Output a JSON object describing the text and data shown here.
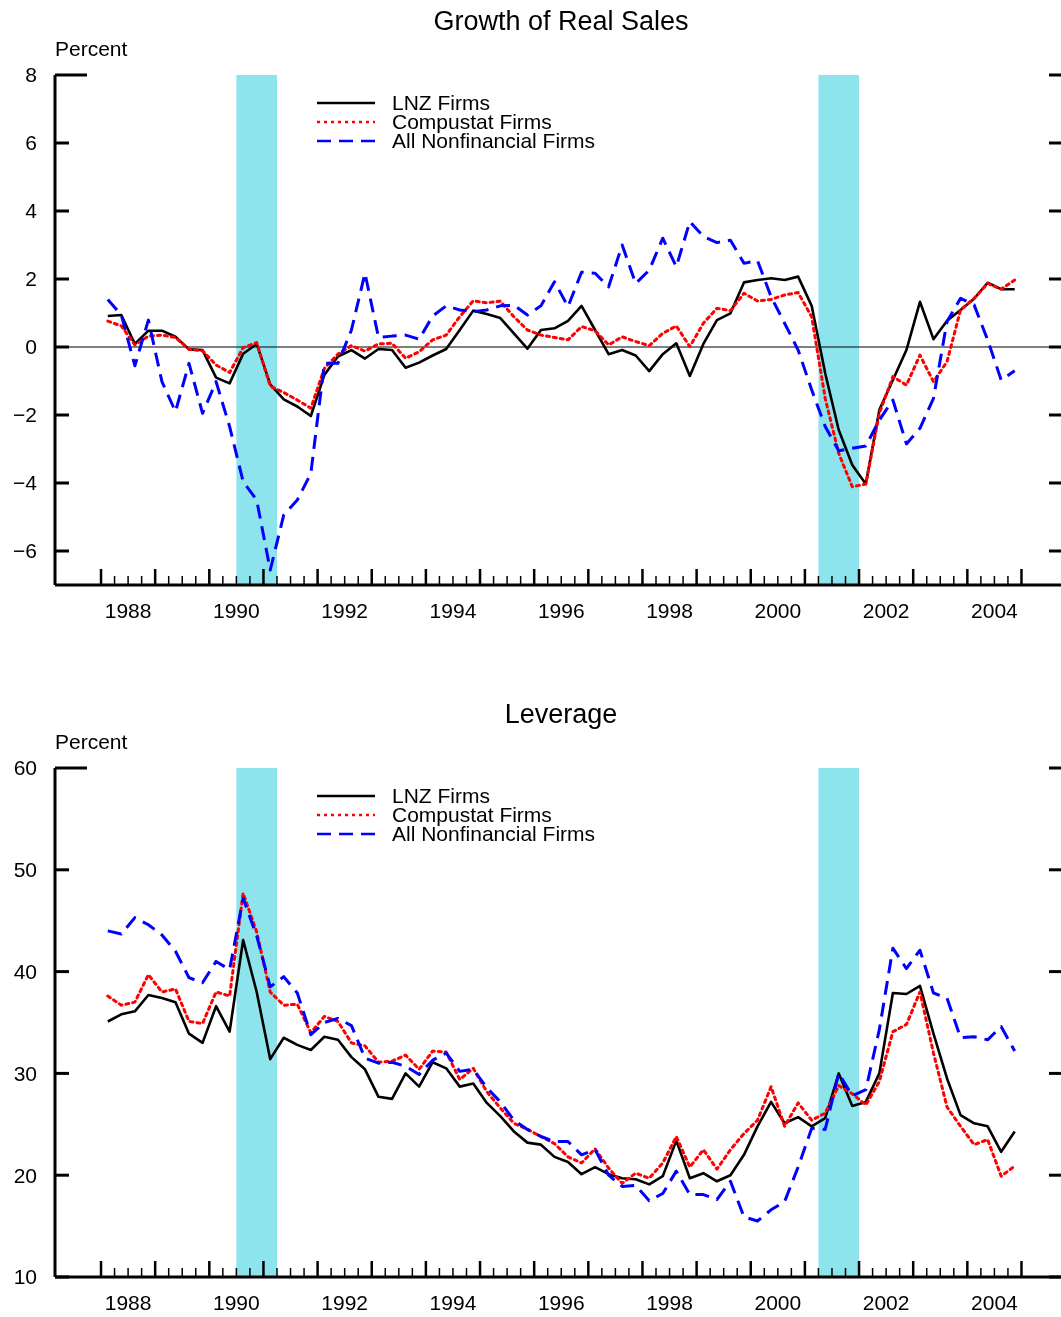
{
  "chart_data": [
    {
      "type": "line",
      "title": "Growth of Real Sales",
      "ylabel": "Percent",
      "xlim": [
        1987.15,
        2005.73
      ],
      "ylim": [
        -7,
        8
      ],
      "yticks": [
        -6,
        -4,
        -2,
        0,
        2,
        4,
        6,
        8
      ],
      "xticks": [
        {
          "value": 1988,
          "label": null
        },
        {
          "value": 1988.25,
          "label": null
        },
        {
          "value": 1988.5,
          "label": "1988"
        },
        {
          "value": 1988.75,
          "label": null
        },
        {
          "value": 1989,
          "label": null
        },
        {
          "value": 1989.25,
          "label": null
        },
        {
          "value": 1989.5,
          "label": null
        },
        {
          "value": 1989.75,
          "label": null
        },
        {
          "value": 1990,
          "label": null
        },
        {
          "value": 1990.25,
          "label": null
        },
        {
          "value": 1990.5,
          "label": "1990"
        },
        {
          "value": 1990.75,
          "label": null
        },
        {
          "value": 1991,
          "label": null
        },
        {
          "value": 1991.25,
          "label": null
        },
        {
          "value": 1991.5,
          "label": null
        },
        {
          "value": 1991.75,
          "label": null
        },
        {
          "value": 1992,
          "label": null
        },
        {
          "value": 1992.25,
          "label": null
        },
        {
          "value": 1992.5,
          "label": "1992"
        },
        {
          "value": 1992.75,
          "label": null
        },
        {
          "value": 1993,
          "label": null
        },
        {
          "value": 1993.25,
          "label": null
        },
        {
          "value": 1993.5,
          "label": null
        },
        {
          "value": 1993.75,
          "label": null
        },
        {
          "value": 1994,
          "label": null
        },
        {
          "value": 1994.25,
          "label": null
        },
        {
          "value": 1994.5,
          "label": "1994"
        },
        {
          "value": 1994.75,
          "label": null
        },
        {
          "value": 1995,
          "label": null
        },
        {
          "value": 1995.25,
          "label": null
        },
        {
          "value": 1995.5,
          "label": null
        },
        {
          "value": 1995.75,
          "label": null
        },
        {
          "value": 1996,
          "label": null
        },
        {
          "value": 1996.25,
          "label": null
        },
        {
          "value": 1996.5,
          "label": "1996"
        },
        {
          "value": 1996.75,
          "label": null
        },
        {
          "value": 1997,
          "label": null
        },
        {
          "value": 1997.25,
          "label": null
        },
        {
          "value": 1997.5,
          "label": null
        },
        {
          "value": 1997.75,
          "label": null
        },
        {
          "value": 1998,
          "label": null
        },
        {
          "value": 1998.25,
          "label": null
        },
        {
          "value": 1998.5,
          "label": "1998"
        },
        {
          "value": 1998.75,
          "label": null
        },
        {
          "value": 1999,
          "label": null
        },
        {
          "value": 1999.25,
          "label": null
        },
        {
          "value": 1999.5,
          "label": null
        },
        {
          "value": 1999.75,
          "label": null
        },
        {
          "value": 2000,
          "label": null
        },
        {
          "value": 2000.25,
          "label": null
        },
        {
          "value": 2000.5,
          "label": "2000"
        },
        {
          "value": 2000.75,
          "label": null
        },
        {
          "value": 2001,
          "label": null
        },
        {
          "value": 2001.25,
          "label": null
        },
        {
          "value": 2001.5,
          "label": null
        },
        {
          "value": 2001.75,
          "label": null
        },
        {
          "value": 2002,
          "label": null
        },
        {
          "value": 2002.25,
          "label": null
        },
        {
          "value": 2002.5,
          "label": "2002"
        },
        {
          "value": 2002.75,
          "label": null
        },
        {
          "value": 2003,
          "label": null
        },
        {
          "value": 2003.25,
          "label": null
        },
        {
          "value": 2003.5,
          "label": null
        },
        {
          "value": 2003.75,
          "label": null
        },
        {
          "value": 2004,
          "label": null
        },
        {
          "value": 2004.25,
          "label": null
        },
        {
          "value": 2004.5,
          "label": "2004"
        },
        {
          "value": 2004.75,
          "label": null
        },
        {
          "value": 2005,
          "label": null
        }
      ],
      "legend": "top left",
      "grid": false,
      "bands": [
        {
          "axis": "x",
          "from": 1990.5,
          "to": 1991.25,
          "color": "#8ee4ec"
        },
        {
          "axis": "x",
          "from": 2001.25,
          "to": 2002,
          "color": "#8ee4ec"
        }
      ],
      "ref_lines": [
        {
          "axis": "y",
          "value": 0,
          "color": "#000000"
        }
      ],
      "x": [
        1988.125,
        1988.375,
        1988.625,
        1988.875,
        1989.125,
        1989.375,
        1989.625,
        1989.875,
        1990.125,
        1990.375,
        1990.625,
        1990.875,
        1991.125,
        1991.375,
        1991.625,
        1991.875,
        1992.125,
        1992.375,
        1992.625,
        1992.875,
        1993.125,
        1993.375,
        1993.625,
        1993.875,
        1994.125,
        1994.375,
        1994.625,
        1994.875,
        1995.125,
        1995.375,
        1995.625,
        1995.875,
        1996.125,
        1996.375,
        1996.625,
        1996.875,
        1997.125,
        1997.375,
        1997.625,
        1997.875,
        1998.125,
        1998.375,
        1998.625,
        1998.875,
        1999.125,
        1999.375,
        1999.625,
        1999.875,
        2000.125,
        2000.375,
        2000.625,
        2000.875,
        2001.125,
        2001.375,
        2001.625,
        2001.875,
        2002.125,
        2002.375,
        2002.625,
        2002.875,
        2003.125,
        2003.375,
        2003.625,
        2003.875,
        2004.125,
        2004.375,
        2004.625,
        2004.875
      ],
      "series": [
        {
          "name": "LNZ Firms",
          "color": "#000000",
          "line_style": "solid",
          "values": [
            0.91,
            0.94,
            0.09,
            0.48,
            0.48,
            0.3,
            -0.07,
            -0.09,
            -0.9,
            -1.07,
            -0.2,
            0.09,
            -1.1,
            -1.54,
            -1.75,
            -2.03,
            -0.82,
            -0.28,
            -0.09,
            -0.34,
            -0.06,
            -0.09,
            -0.61,
            -0.46,
            -0.25,
            -0.06,
            0.5,
            1.07,
            0.97,
            0.85,
            0.4,
            -0.05,
            0.5,
            0.55,
            0.77,
            1.21,
            0.5,
            -0.21,
            -0.09,
            -0.25,
            -0.71,
            -0.21,
            0.11,
            -0.85,
            0.09,
            0.79,
            0.99,
            1.9,
            1.97,
            2.02,
            1.97,
            2.07,
            1.21,
            -0.77,
            -2.44,
            -3.47,
            -4.03,
            -1.85,
            -0.97,
            -0.09,
            1.33,
            0.23,
            0.77,
            1.09,
            1.42,
            1.89,
            1.7,
            1.7
          ]
        },
        {
          "name": "Compustat Firms",
          "color": "#ff0000",
          "line_style": "dotted",
          "values": [
            0.76,
            0.62,
            0.06,
            0.32,
            0.35,
            0.28,
            -0.07,
            -0.11,
            -0.53,
            -0.75,
            -0.02,
            0.13,
            -1.15,
            -1.34,
            -1.56,
            -1.8,
            -0.63,
            -0.21,
            0.04,
            -0.12,
            0.09,
            0.11,
            -0.33,
            -0.14,
            0.21,
            0.35,
            0.89,
            1.36,
            1.3,
            1.35,
            0.89,
            0.5,
            0.35,
            0.28,
            0.21,
            0.6,
            0.48,
            0.06,
            0.3,
            0.16,
            0.04,
            0.4,
            0.62,
            0.01,
            0.7,
            1.14,
            1.07,
            1.58,
            1.35,
            1.4,
            1.53,
            1.6,
            0.89,
            -1.51,
            -3.13,
            -4.11,
            -4.03,
            -1.95,
            -0.87,
            -1.12,
            -0.24,
            -1.02,
            -0.43,
            1.09,
            1.43,
            1.87,
            1.7,
            1.97
          ]
        },
        {
          "name": "All Nonfinancial Firms",
          "color": "#0000ff",
          "line_style": "dashed",
          "values": [
            1.4,
            0.94,
            -0.55,
            0.79,
            -1.02,
            -1.9,
            -0.48,
            -1.95,
            -1.02,
            -2.34,
            -3.96,
            -4.5,
            -6.56,
            -4.94,
            -4.5,
            -3.72,
            -0.48,
            -0.48,
            0.5,
            2.17,
            0.28,
            0.32,
            0.35,
            0.23,
            0.91,
            1.21,
            1.09,
            1.04,
            1.09,
            1.21,
            1.23,
            0.94,
            1.21,
            1.92,
            1.19,
            2.2,
            2.17,
            1.77,
            3.0,
            1.87,
            2.26,
            3.2,
            2.36,
            3.69,
            3.25,
            3.07,
            3.14,
            2.46,
            2.54,
            1.48,
            0.7,
            -0.09,
            -1.26,
            -2.34,
            -3.05,
            -2.98,
            -2.91,
            -2.15,
            -1.56,
            -2.85,
            -2.39,
            -1.51,
            0.75,
            1.43,
            1.24,
            0.21,
            -0.97,
            -0.7
          ]
        }
      ]
    },
    {
      "type": "line",
      "title": "Leverage",
      "ylabel": "Percent",
      "xlim": [
        1987.15,
        2005.73
      ],
      "ylim": [
        10,
        60
      ],
      "yticks": [
        10,
        20,
        30,
        40,
        50,
        60
      ],
      "xticks": [
        {
          "value": 1988,
          "label": null
        },
        {
          "value": 1988.25,
          "label": null
        },
        {
          "value": 1988.5,
          "label": "1988"
        },
        {
          "value": 1988.75,
          "label": null
        },
        {
          "value": 1989,
          "label": null
        },
        {
          "value": 1989.25,
          "label": null
        },
        {
          "value": 1989.5,
          "label": null
        },
        {
          "value": 1989.75,
          "label": null
        },
        {
          "value": 1990,
          "label": null
        },
        {
          "value": 1990.25,
          "label": null
        },
        {
          "value": 1990.5,
          "label": "1990"
        },
        {
          "value": 1990.75,
          "label": null
        },
        {
          "value": 1991,
          "label": null
        },
        {
          "value": 1991.25,
          "label": null
        },
        {
          "value": 1991.5,
          "label": null
        },
        {
          "value": 1991.75,
          "label": null
        },
        {
          "value": 1992,
          "label": null
        },
        {
          "value": 1992.25,
          "label": null
        },
        {
          "value": 1992.5,
          "label": "1992"
        },
        {
          "value": 1992.75,
          "label": null
        },
        {
          "value": 1993,
          "label": null
        },
        {
          "value": 1993.25,
          "label": null
        },
        {
          "value": 1993.5,
          "label": null
        },
        {
          "value": 1993.75,
          "label": null
        },
        {
          "value": 1994,
          "label": null
        },
        {
          "value": 1994.25,
          "label": null
        },
        {
          "value": 1994.5,
          "label": "1994"
        },
        {
          "value": 1994.75,
          "label": null
        },
        {
          "value": 1995,
          "label": null
        },
        {
          "value": 1995.25,
          "label": null
        },
        {
          "value": 1995.5,
          "label": null
        },
        {
          "value": 1995.75,
          "label": null
        },
        {
          "value": 1996,
          "label": null
        },
        {
          "value": 1996.25,
          "label": null
        },
        {
          "value": 1996.5,
          "label": "1996"
        },
        {
          "value": 1996.75,
          "label": null
        },
        {
          "value": 1997,
          "label": null
        },
        {
          "value": 1997.25,
          "label": null
        },
        {
          "value": 1997.5,
          "label": null
        },
        {
          "value": 1997.75,
          "label": null
        },
        {
          "value": 1998,
          "label": null
        },
        {
          "value": 1998.25,
          "label": null
        },
        {
          "value": 1998.5,
          "label": "1998"
        },
        {
          "value": 1998.75,
          "label": null
        },
        {
          "value": 1999,
          "label": null
        },
        {
          "value": 1999.25,
          "label": null
        },
        {
          "value": 1999.5,
          "label": null
        },
        {
          "value": 1999.75,
          "label": null
        },
        {
          "value": 2000,
          "label": null
        },
        {
          "value": 2000.25,
          "label": null
        },
        {
          "value": 2000.5,
          "label": "2000"
        },
        {
          "value": 2000.75,
          "label": null
        },
        {
          "value": 2001,
          "label": null
        },
        {
          "value": 2001.25,
          "label": null
        },
        {
          "value": 2001.5,
          "label": null
        },
        {
          "value": 2001.75,
          "label": null
        },
        {
          "value": 2002,
          "label": null
        },
        {
          "value": 2002.25,
          "label": null
        },
        {
          "value": 2002.5,
          "label": "2002"
        },
        {
          "value": 2002.75,
          "label": null
        },
        {
          "value": 2003,
          "label": null
        },
        {
          "value": 2003.25,
          "label": null
        },
        {
          "value": 2003.5,
          "label": null
        },
        {
          "value": 2003.75,
          "label": null
        },
        {
          "value": 2004,
          "label": null
        },
        {
          "value": 2004.25,
          "label": null
        },
        {
          "value": 2004.5,
          "label": "2004"
        },
        {
          "value": 2004.75,
          "label": null
        },
        {
          "value": 2005,
          "label": null
        }
      ],
      "legend": "top left",
      "grid": false,
      "bands": [
        {
          "axis": "x",
          "from": 1990.5,
          "to": 1991.25,
          "color": "#8ee4ec"
        },
        {
          "axis": "x",
          "from": 2001.25,
          "to": 2002,
          "color": "#8ee4ec"
        }
      ],
      "x": [
        1988.125,
        1988.375,
        1988.625,
        1988.875,
        1989.125,
        1989.375,
        1989.625,
        1989.875,
        1990.125,
        1990.375,
        1990.625,
        1990.875,
        1991.125,
        1991.375,
        1991.625,
        1991.875,
        1992.125,
        1992.375,
        1992.625,
        1992.875,
        1993.125,
        1993.375,
        1993.625,
        1993.875,
        1994.125,
        1994.375,
        1994.625,
        1994.875,
        1995.125,
        1995.375,
        1995.625,
        1995.875,
        1996.125,
        1996.375,
        1996.625,
        1996.875,
        1997.125,
        1997.375,
        1997.625,
        1997.875,
        1998.125,
        1998.375,
        1998.625,
        1998.875,
        1999.125,
        1999.375,
        1999.625,
        1999.875,
        2000.125,
        2000.375,
        2000.625,
        2000.875,
        2001.125,
        2001.375,
        2001.625,
        2001.875,
        2002.125,
        2002.375,
        2002.625,
        2002.875,
        2003.125,
        2003.375,
        2003.625,
        2003.875,
        2004.125,
        2004.375,
        2004.625,
        2004.875
      ],
      "series": [
        {
          "name": "LNZ Firms",
          "color": "#000000",
          "line_style": "solid",
          "values": [
            35.1,
            35.8,
            36.1,
            37.7,
            37.4,
            37.0,
            33.9,
            33.0,
            36.6,
            34.1,
            43.1,
            38.0,
            31.4,
            33.5,
            32.8,
            32.3,
            33.6,
            33.3,
            31.6,
            30.4,
            27.7,
            27.5,
            30.0,
            28.7,
            31.1,
            30.5,
            28.7,
            29.0,
            27.1,
            25.8,
            24.3,
            23.2,
            23.0,
            21.8,
            21.3,
            20.1,
            20.8,
            20.1,
            19.7,
            19.6,
            19.1,
            19.9,
            23.4,
            19.7,
            20.2,
            19.4,
            20.0,
            22.0,
            24.8,
            27.2,
            25.1,
            25.7,
            24.8,
            25.6,
            30.0,
            26.8,
            27.2,
            30.0,
            37.9,
            37.8,
            38.6,
            33.9,
            29.5,
            25.9,
            25.1,
            24.8,
            22.3,
            24.3
          ]
        },
        {
          "name": "Compustat Firms",
          "color": "#ff0000",
          "line_style": "dotted",
          "values": [
            37.6,
            36.7,
            37.0,
            39.7,
            38.0,
            38.3,
            35.1,
            34.9,
            38.0,
            37.6,
            47.7,
            43.9,
            38.0,
            36.7,
            36.8,
            34.0,
            35.6,
            35.1,
            33.0,
            32.7,
            31.1,
            31.2,
            31.8,
            30.4,
            32.2,
            32.1,
            29.4,
            30.5,
            28.2,
            26.6,
            25.1,
            24.5,
            23.8,
            23.1,
            21.8,
            21.2,
            22.6,
            20.7,
            19.2,
            20.2,
            19.7,
            21.2,
            23.8,
            20.8,
            22.5,
            20.6,
            22.5,
            24.1,
            25.4,
            28.7,
            24.8,
            27.1,
            25.4,
            26.1,
            28.8,
            28.0,
            26.9,
            29.2,
            34.1,
            34.8,
            38.0,
            32.0,
            26.7,
            24.8,
            23.0,
            23.5,
            19.9,
            20.9
          ]
        },
        {
          "name": "All Nonfinancial Firms",
          "color": "#0000ff",
          "line_style": "dashed",
          "values": [
            44.0,
            43.7,
            45.3,
            44.6,
            43.6,
            42.0,
            39.4,
            38.9,
            41.0,
            40.2,
            47.2,
            43.5,
            38.5,
            39.5,
            37.9,
            33.8,
            35.0,
            35.4,
            34.7,
            31.5,
            31.0,
            31.1,
            30.7,
            29.9,
            31.3,
            32.0,
            30.2,
            30.4,
            28.6,
            27.2,
            25.4,
            24.5,
            23.8,
            23.3,
            23.3,
            22.0,
            22.5,
            20.0,
            18.9,
            19.0,
            17.5,
            18.2,
            20.4,
            18.1,
            18.1,
            17.6,
            19.4,
            15.9,
            15.5,
            16.6,
            17.4,
            20.8,
            24.6,
            24.5,
            30.0,
            27.8,
            28.4,
            34.3,
            42.3,
            40.3,
            42.1,
            37.9,
            37.4,
            33.5,
            33.6,
            33.3,
            34.6,
            32.2
          ]
        }
      ]
    }
  ]
}
